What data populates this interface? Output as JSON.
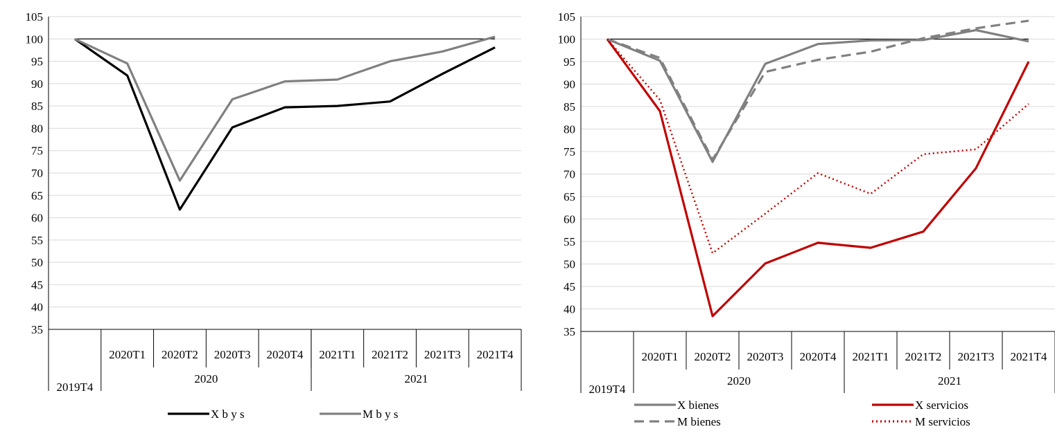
{
  "chart_data": [
    {
      "type": "line",
      "ylim": [
        35,
        105
      ],
      "yticks": [
        35,
        40,
        45,
        50,
        55,
        60,
        65,
        70,
        75,
        80,
        85,
        90,
        95,
        100,
        105
      ],
      "categories": [
        "2019T4",
        "2020T1",
        "2020T2",
        "2020T3",
        "2020T4",
        "2021T1",
        "2021T2",
        "2021T3",
        "2021T4"
      ],
      "years": [
        "2020",
        "2021"
      ],
      "reference_line": 100,
      "grid": "horizontal",
      "legend_position": "bottom",
      "series": [
        {
          "name": "X b y s",
          "color": "#000000",
          "style": "solid",
          "values": [
            100,
            91.8,
            61.8,
            80.2,
            84.7,
            85.0,
            86.0,
            92.2,
            98.1
          ]
        },
        {
          "name": "M b y s",
          "color": "#808080",
          "style": "solid",
          "values": [
            100,
            94.5,
            68.3,
            86.5,
            90.5,
            90.9,
            95.0,
            97.2,
            100.5
          ]
        }
      ]
    },
    {
      "type": "line",
      "ylim": [
        35,
        105
      ],
      "yticks": [
        35,
        40,
        45,
        50,
        55,
        60,
        65,
        70,
        75,
        80,
        85,
        90,
        95,
        100,
        105
      ],
      "categories": [
        "2019T4",
        "2020T1",
        "2020T2",
        "2020T3",
        "2020T4",
        "2021T1",
        "2021T2",
        "2021T3",
        "2021T4"
      ],
      "years": [
        "2020",
        "2021"
      ],
      "reference_line": 100,
      "grid": "horizontal",
      "legend_position": "bottom",
      "series": [
        {
          "name": "X bienes",
          "color": "#808080",
          "style": "solid",
          "values": [
            100,
            95.2,
            72.7,
            94.5,
            98.9,
            99.7,
            99.8,
            102.0,
            99.5
          ]
        },
        {
          "name": "X servicios",
          "color": "#c00000",
          "style": "solid",
          "values": [
            100,
            84.0,
            38.4,
            50.1,
            54.7,
            53.6,
            57.2,
            71.3,
            95.0
          ]
        },
        {
          "name": "M bienes",
          "color": "#808080",
          "style": "dashed",
          "values": [
            100,
            95.8,
            73.2,
            92.7,
            95.4,
            97.2,
            100.2,
            102.4,
            104.1
          ]
        },
        {
          "name": "M servicios",
          "color": "#c00000",
          "style": "dotted",
          "values": [
            100,
            86.5,
            52.4,
            61.2,
            70.2,
            65.6,
            74.4,
            75.5,
            85.6
          ]
        }
      ]
    }
  ]
}
